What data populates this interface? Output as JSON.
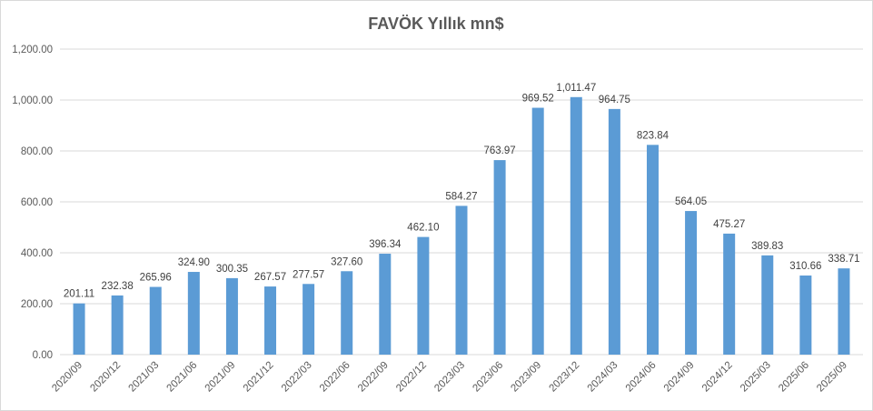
{
  "chart_data": {
    "type": "bar",
    "title": "FAVÖK Yıllık mn$",
    "xlabel": "",
    "ylabel": "",
    "ylim": [
      0,
      1200
    ],
    "yticks": [
      "0.00",
      "200.00",
      "400.00",
      "600.00",
      "800.00",
      "1,000.00",
      "1,200.00"
    ],
    "ytick_values": [
      0,
      200,
      400,
      600,
      800,
      1000,
      1200
    ],
    "grid": true,
    "legend": "none",
    "bar_color": "#5b9bd5",
    "categories": [
      "2020/09",
      "2020/12",
      "2021/03",
      "2021/06",
      "2021/09",
      "2021/12",
      "2022/03",
      "2022/06",
      "2022/09",
      "2022/12",
      "2023/03",
      "2023/06",
      "2023/09",
      "2023/12",
      "2024/03",
      "2024/06",
      "2024/09",
      "2024/12",
      "2025/03",
      "2025/06",
      "2025/09"
    ],
    "values": [
      201.11,
      232.38,
      265.96,
      324.9,
      300.35,
      267.57,
      277.57,
      327.6,
      396.34,
      462.1,
      584.27,
      763.97,
      969.52,
      1011.47,
      964.75,
      823.84,
      564.05,
      475.27,
      389.83,
      310.66,
      338.71
    ],
    "data_labels": [
      "201.11",
      "232.38",
      "265.96",
      "324.90",
      "300.35",
      "267.57",
      "277.57",
      "327.60",
      "396.34",
      "462.10",
      "584.27",
      "763.97",
      "969.52",
      "1,011.47",
      "964.75",
      "823.84",
      "564.05",
      "475.27",
      "389.83",
      "310.66",
      "338.71"
    ]
  }
}
